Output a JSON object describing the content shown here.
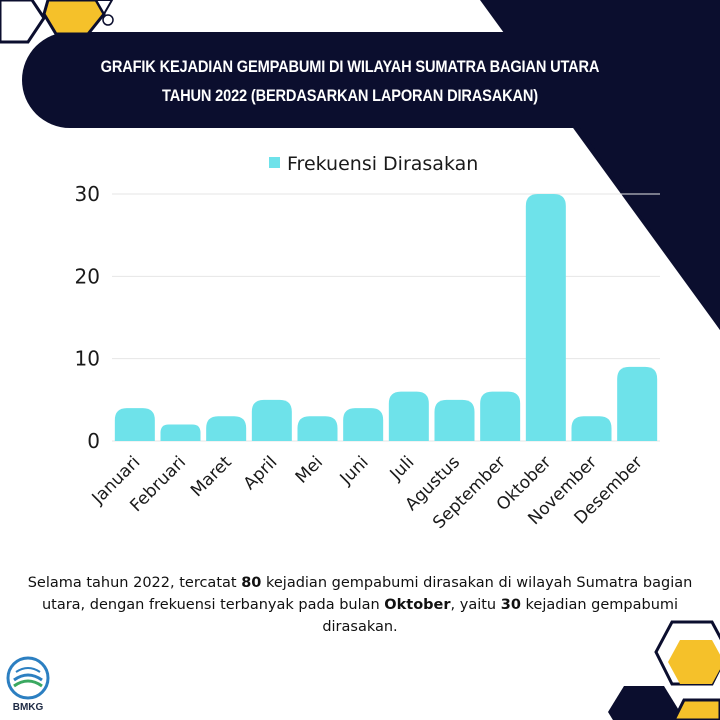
{
  "header": {
    "title_line1": "GRAFIK KEJADIAN GEMPABUMI DI WILAYAH SUMATRA BAGIAN UTARA",
    "title_line2": "TAHUN 2022 (BERDASARKAN LAPORAN DIRASAKAN)"
  },
  "colors": {
    "navy": "#0b0e2e",
    "bar": "#6ee2ea",
    "gold": "#f5c12a",
    "grid": "#e6e6e6"
  },
  "chart_data": {
    "type": "bar",
    "categories": [
      "Januari",
      "Februari",
      "Maret",
      "April",
      "Mei",
      "Juni",
      "Juli",
      "Agustus",
      "September",
      "Oktober",
      "November",
      "Desember"
    ],
    "series": [
      {
        "name": "Frekuensi Dirasakan",
        "values": [
          4,
          2,
          3,
          5,
          3,
          4,
          6,
          5,
          6,
          30,
          3,
          9
        ]
      }
    ],
    "yticks": [
      0,
      10,
      20,
      30
    ],
    "ylim": [
      0,
      30
    ],
    "grid": true,
    "legend": "top-center"
  },
  "summary": {
    "p1": "Selama tahun 2022, tercatat ",
    "total": "80",
    "p2": " kejadian gempabumi dirasakan di wilayah Sumatra bagian utara, dengan frekuensi terbanyak pada bulan ",
    "peak_month": "Oktober",
    "p3": ", yaitu ",
    "peak_count": "30",
    "p4": " kejadian gempabumi dirasakan."
  },
  "logo": {
    "text": "BMKG"
  }
}
